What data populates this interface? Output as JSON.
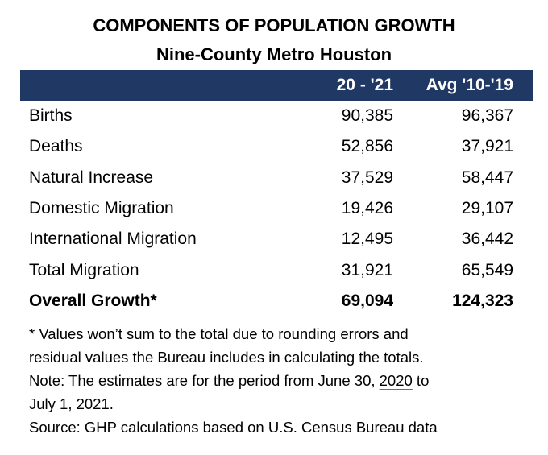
{
  "title": "COMPONENTS OF POPULATION GROWTH",
  "subtitle": "Nine-County Metro Houston",
  "header": {
    "col1": "20 - '21",
    "col2": "Avg '10-'19",
    "color": "#1f3864"
  },
  "rows": [
    {
      "label": "Births",
      "col1": "90,385",
      "col2": "96,367"
    },
    {
      "label": "Deaths",
      "col1": "52,856",
      "col2": "37,921"
    },
    {
      "label": "Natural Increase",
      "col1": "37,529",
      "col2": "58,447"
    },
    {
      "label": "Domestic Migration",
      "col1": "19,426",
      "col2": "29,107"
    },
    {
      "label": "International Migration",
      "col1": "12,495",
      "col2": "36,442"
    },
    {
      "label": "Total Migration",
      "col1": "31,921",
      "col2": "65,549"
    },
    {
      "label": "Overall Growth*",
      "col1": "69,094",
      "col2": "124,323"
    }
  ],
  "notes": {
    "line1": "* Values won’t sum to the total due to rounding errors and",
    "line2": "residual values the Bureau includes in calculating the totals.",
    "line3a": "Note: The estimates are for the period from June 30, ",
    "line3b": "2020",
    "line3c": " to",
    "line4": "July 1, 2021.",
    "line5": "Source: GHP calculations based on U.S. Census Bureau data"
  }
}
